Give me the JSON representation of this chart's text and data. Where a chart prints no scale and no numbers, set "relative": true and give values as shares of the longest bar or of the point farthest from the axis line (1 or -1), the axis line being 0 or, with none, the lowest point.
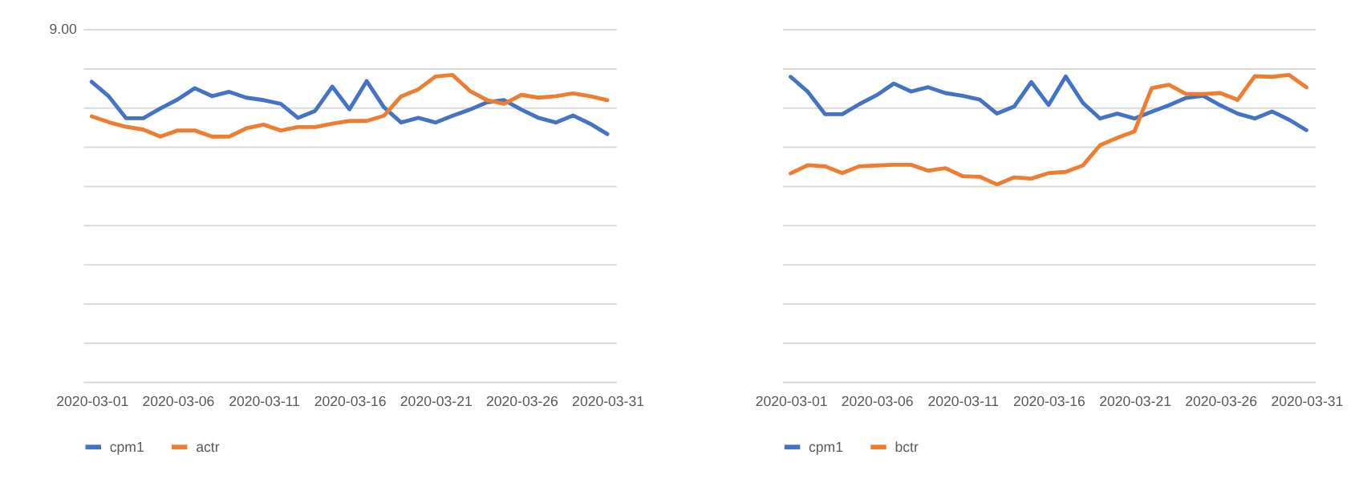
{
  "chart_data": [
    {
      "type": "line",
      "relative": true,
      "grid": "y",
      "legend": "bottom",
      "annotations": [
        "9.00"
      ],
      "categories": [
        "2020-03-01",
        null,
        null,
        null,
        null,
        "2020-03-06",
        null,
        null,
        null,
        null,
        "2020-03-11",
        null,
        null,
        null,
        null,
        "2020-03-16",
        null,
        null,
        null,
        null,
        "2020-03-21",
        null,
        null,
        null,
        null,
        "2020-03-26",
        null,
        null,
        null,
        null,
        "2020-03-31"
      ],
      "series": [
        {
          "name": "cpm1",
          "color": "#4472c4",
          "values": [
            0.978,
            0.93,
            0.859,
            0.859,
            0.891,
            0.92,
            0.957,
            0.931,
            0.945,
            0.926,
            0.918,
            0.906,
            0.86,
            0.883,
            0.962,
            0.888,
            0.98,
            0.895,
            0.845,
            0.86,
            0.845,
            0.867,
            0.887,
            0.911,
            0.918,
            0.887,
            0.86,
            0.845,
            0.868,
            0.841,
            0.807
          ]
        },
        {
          "name": "actr",
          "color": "#ed7d31",
          "values": [
            0.865,
            0.846,
            0.831,
            0.822,
            0.799,
            0.819,
            0.819,
            0.799,
            0.799,
            0.826,
            0.838,
            0.819,
            0.83,
            0.83,
            0.841,
            0.85,
            0.85,
            0.867,
            0.93,
            0.953,
            0.995,
            1,
            0.948,
            0.918,
            0.906,
            0.935,
            0.926,
            0.931,
            0.94,
            0.931,
            0.918
          ]
        }
      ]
    },
    {
      "type": "line",
      "relative": true,
      "grid": "y",
      "legend": "bottom",
      "categories": [
        "2020-03-01",
        null,
        null,
        null,
        null,
        "2020-03-06",
        null,
        null,
        null,
        null,
        "2020-03-11",
        null,
        null,
        null,
        null,
        "2020-03-16",
        null,
        null,
        null,
        null,
        "2020-03-21",
        null,
        null,
        null,
        null,
        "2020-03-26",
        null,
        null,
        null,
        null,
        "2020-03-31"
      ],
      "series": [
        {
          "name": "cpm1",
          "color": "#4472c4",
          "values": [
            0.994,
            0.945,
            0.872,
            0.872,
            0.905,
            0.934,
            0.972,
            0.946,
            0.96,
            0.941,
            0.932,
            0.92,
            0.874,
            0.897,
            0.977,
            0.902,
            0.995,
            0.909,
            0.858,
            0.874,
            0.858,
            0.88,
            0.901,
            0.925,
            0.932,
            0.901,
            0.874,
            0.858,
            0.881,
            0.854,
            0.82
          ]
        },
        {
          "name": "bctr",
          "color": "#ed7d31",
          "values": [
            0.679,
            0.706,
            0.702,
            0.68,
            0.702,
            0.705,
            0.707,
            0.707,
            0.688,
            0.696,
            0.67,
            0.668,
            0.643,
            0.666,
            0.662,
            0.68,
            0.684,
            0.705,
            0.771,
            0.795,
            0.816,
            0.957,
            0.968,
            0.938,
            0.938,
            0.941,
            0.919,
            0.996,
            0.994,
            1,
            0.96
          ]
        }
      ]
    }
  ]
}
